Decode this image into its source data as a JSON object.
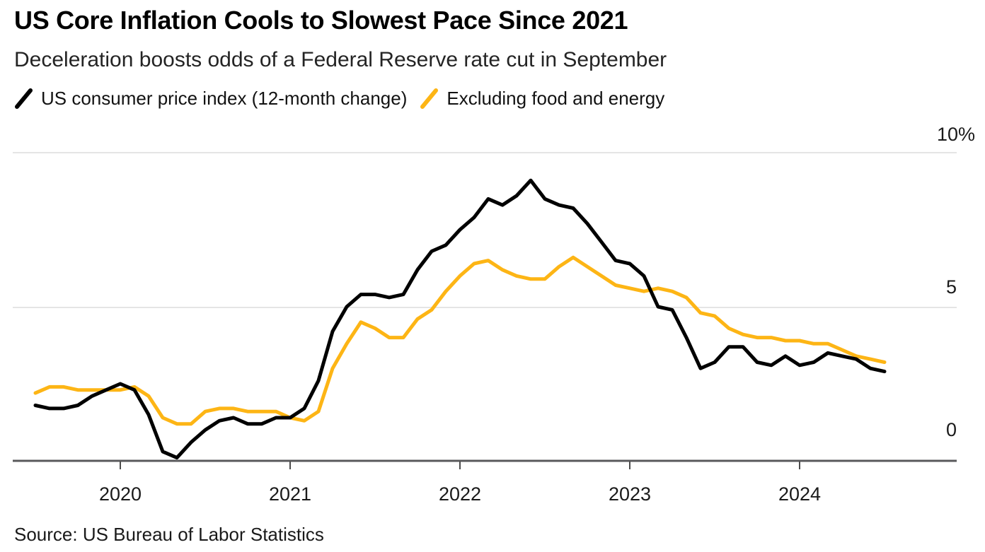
{
  "chart_data": {
    "type": "line",
    "title": "US Core Inflation Cools to Slowest Pace Since 2021",
    "subtitle": "Deceleration boosts odds of a Federal Reserve rate cut in September",
    "xlabel": "",
    "ylabel": "",
    "unit": "percent, 12-month change",
    "ylim": [
      0,
      10
    ],
    "grid": "horizontal",
    "legend_position": "top-left",
    "x_range": [
      "2019-07",
      "2024-07"
    ],
    "months": [
      "2019-07",
      "2019-08",
      "2019-09",
      "2019-10",
      "2019-11",
      "2019-12",
      "2020-01",
      "2020-02",
      "2020-03",
      "2020-04",
      "2020-05",
      "2020-06",
      "2020-07",
      "2020-08",
      "2020-09",
      "2020-10",
      "2020-11",
      "2020-12",
      "2021-01",
      "2021-02",
      "2021-03",
      "2021-04",
      "2021-05",
      "2021-06",
      "2021-07",
      "2021-08",
      "2021-09",
      "2021-10",
      "2021-11",
      "2021-12",
      "2022-01",
      "2022-02",
      "2022-03",
      "2022-04",
      "2022-05",
      "2022-06",
      "2022-07",
      "2022-08",
      "2022-09",
      "2022-10",
      "2022-11",
      "2022-12",
      "2023-01",
      "2023-02",
      "2023-03",
      "2023-04",
      "2023-05",
      "2023-06",
      "2023-07",
      "2023-08",
      "2023-09",
      "2023-10",
      "2023-11",
      "2023-12",
      "2024-01",
      "2024-02",
      "2024-03",
      "2024-04",
      "2024-05",
      "2024-06",
      "2024-07"
    ],
    "x_tick_labels": [
      "2020",
      "2021",
      "2022",
      "2023",
      "2024"
    ],
    "y_ticks": [
      {
        "label": "10%",
        "value": 10
      },
      {
        "label": "5",
        "value": 5
      },
      {
        "label": "0",
        "value": 0
      }
    ],
    "series": [
      {
        "name": "US consumer price index (12-month change)",
        "color": "#000000",
        "values": [
          1.8,
          1.7,
          1.7,
          1.8,
          2.1,
          2.3,
          2.5,
          2.3,
          1.5,
          0.3,
          0.1,
          0.6,
          1.0,
          1.3,
          1.4,
          1.2,
          1.2,
          1.4,
          1.4,
          1.7,
          2.6,
          4.2,
          5.0,
          5.4,
          5.4,
          5.3,
          5.4,
          6.2,
          6.8,
          7.0,
          7.5,
          7.9,
          8.5,
          8.3,
          8.6,
          9.1,
          8.5,
          8.3,
          8.2,
          7.7,
          7.1,
          6.5,
          6.4,
          6.0,
          5.0,
          4.9,
          4.0,
          3.0,
          3.2,
          3.7,
          3.7,
          3.2,
          3.1,
          3.4,
          3.1,
          3.2,
          3.5,
          3.4,
          3.3,
          3.0,
          2.9
        ]
      },
      {
        "name": "Excluding food and energy",
        "color": "#FDB515",
        "values": [
          2.2,
          2.4,
          2.4,
          2.3,
          2.3,
          2.3,
          2.3,
          2.4,
          2.1,
          1.4,
          1.2,
          1.2,
          1.6,
          1.7,
          1.7,
          1.6,
          1.6,
          1.6,
          1.4,
          1.3,
          1.6,
          3.0,
          3.8,
          4.5,
          4.3,
          4.0,
          4.0,
          4.6,
          4.9,
          5.5,
          6.0,
          6.4,
          6.5,
          6.2,
          6.0,
          5.9,
          5.9,
          6.3,
          6.6,
          6.3,
          6.0,
          5.7,
          5.6,
          5.5,
          5.6,
          5.5,
          5.3,
          4.8,
          4.7,
          4.3,
          4.1,
          4.0,
          4.0,
          3.9,
          3.9,
          3.8,
          3.8,
          3.6,
          3.4,
          3.3,
          3.2
        ]
      }
    ]
  },
  "source": {
    "label": "Source: US Bureau of Labor Statistics"
  }
}
